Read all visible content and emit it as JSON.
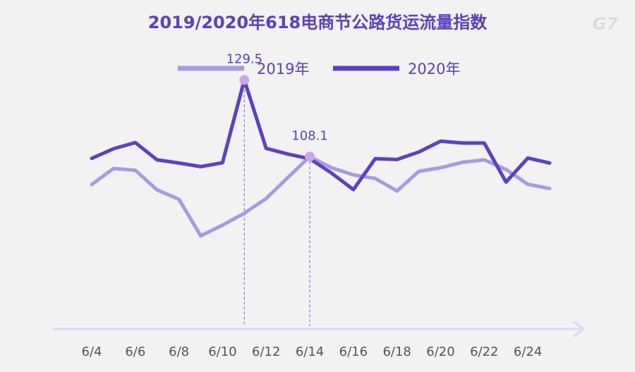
{
  "logo": "G7",
  "colors": {
    "background": "#f2f2f2",
    "title": "#5b3fc9",
    "series_2019": "#a99ae8",
    "series_2020": "#5c40cc",
    "axis": "#ddd6f5",
    "tick_text": "#555555",
    "annotation_text": "#5b3fc9",
    "marker": "#c9a8e8",
    "logo": "#dcdcdc"
  },
  "chart_data": {
    "type": "line",
    "title": "2019/2020年618电商节公路货运流量指数",
    "xlabel": "",
    "ylabel": "",
    "legend_position": "top-center",
    "grid": false,
    "x": [
      "6/4",
      "6/5",
      "6/6",
      "6/7",
      "6/8",
      "6/9",
      "6/10",
      "6/11",
      "6/12",
      "6/13",
      "6/14",
      "6/15",
      "6/16",
      "6/17",
      "6/18",
      "6/19",
      "6/20",
      "6/21",
      "6/22",
      "6/23",
      "6/24",
      "6/25"
    ],
    "tick_labels": [
      "6/4",
      "6/6",
      "6/8",
      "6/10",
      "6/12",
      "6/14",
      "6/16",
      "6/18",
      "6/20",
      "6/22",
      "6/24"
    ],
    "ylim": [
      60,
      140
    ],
    "series": [
      {
        "name": "2019年",
        "color": "#a99ae8",
        "values": [
          100.3,
          104.8,
          104.3,
          98.8,
          96.2,
          86.0,
          89.0,
          92.3,
          96.4,
          102.3,
          108.1,
          105.0,
          103.0,
          102.0,
          98.5,
          104.0,
          105.0,
          106.5,
          107.2,
          104.5,
          100.4,
          99.2
        ]
      },
      {
        "name": "2020年",
        "color": "#5c40cc",
        "values": [
          107.6,
          110.3,
          112.0,
          107.2,
          106.3,
          105.3,
          106.4,
          129.5,
          110.4,
          108.8,
          107.5,
          103.5,
          98.9,
          107.5,
          107.3,
          109.4,
          112.4,
          111.9,
          111.9,
          101.0,
          107.7,
          106.3
        ]
      }
    ],
    "annotations": [
      {
        "x": "6/11",
        "series": "2020年",
        "label": "129.5"
      },
      {
        "x": "6/14",
        "series": "2019年",
        "label": "108.1"
      }
    ]
  }
}
